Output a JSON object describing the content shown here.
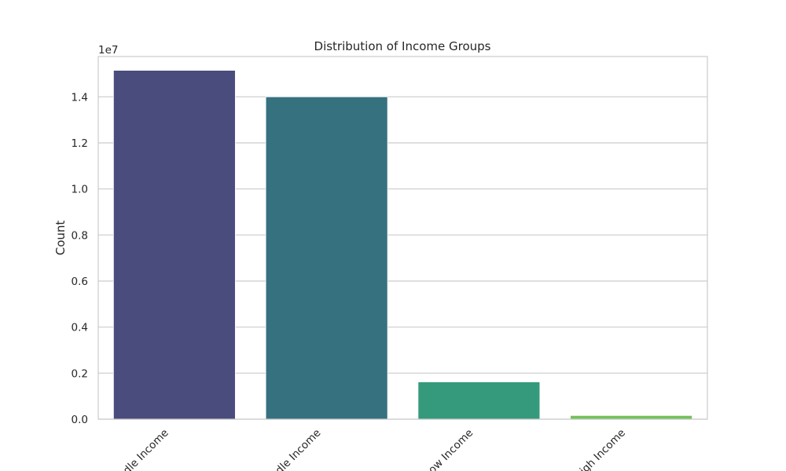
{
  "chart_data": {
    "type": "bar",
    "title": "Distribution of Income Groups",
    "xlabel": "",
    "ylabel": "Count",
    "y_multiplier_label": "1e7",
    "categories": [
      "Lower Middle Income",
      "Upper Middle Income",
      "Low Income",
      "High Income"
    ],
    "visible_category_labels": [
      "dle Income",
      "dle Income",
      "ow Income",
      "igh Income"
    ],
    "values": [
      15150000,
      14000000,
      1620000,
      160000
    ],
    "ylim": [
      0,
      15750000
    ],
    "yticks": [
      0,
      2000000,
      4000000,
      6000000,
      8000000,
      10000000,
      12000000,
      14000000
    ],
    "ytick_labels": [
      "0.0",
      "0.2",
      "0.4",
      "0.6",
      "0.8",
      "1.0",
      "1.2",
      "1.4"
    ],
    "grid": true,
    "colors": [
      "#4a4c7d",
      "#367180",
      "#359a7b",
      "#73c05a"
    ],
    "grid_color": "#cccccc",
    "spine_color": "#cccccc"
  }
}
